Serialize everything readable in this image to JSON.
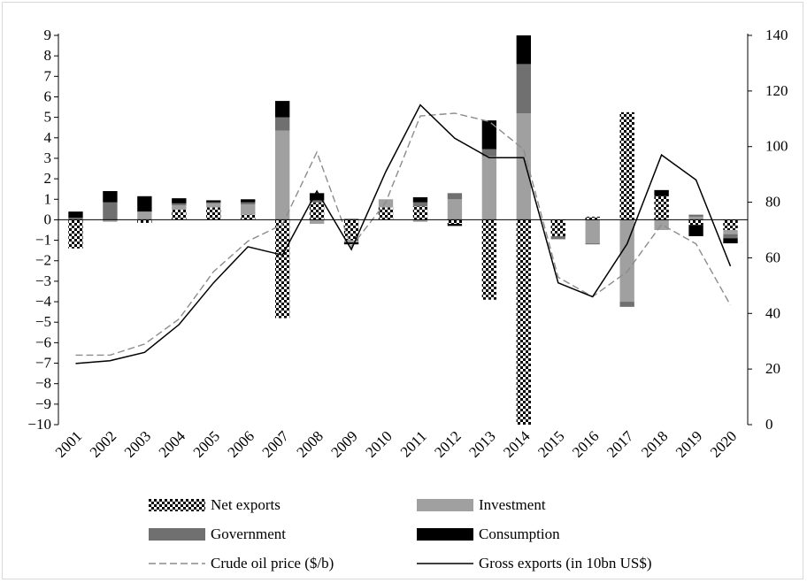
{
  "chart_data": {
    "type": "bar",
    "stacked": true,
    "title": "",
    "categories": [
      "2001",
      "2002",
      "2003",
      "2004",
      "2005",
      "2006",
      "2007",
      "2008",
      "2009",
      "2010",
      "2011",
      "2012",
      "2013",
      "2014",
      "2015",
      "2016",
      "2017",
      "2018",
      "2019",
      "2020"
    ],
    "y_left": {
      "min": -10,
      "max": 9,
      "step": 1,
      "ticks": [
        "−10",
        "−9",
        "−8",
        "−7",
        "−6",
        "−5",
        "−4",
        "−3",
        "−2",
        "−1",
        "0",
        "1",
        "2",
        "3",
        "4",
        "5",
        "6",
        "7",
        "8",
        "9"
      ]
    },
    "y_right": {
      "min": 0,
      "max": 140,
      "step": 20,
      "ticks": [
        "0",
        "20",
        "40",
        "60",
        "80",
        "100",
        "120",
        "140"
      ]
    },
    "bar_series": [
      {
        "name": "Net exports",
        "pattern": "checker",
        "values": [
          -1.4,
          0,
          -0.15,
          0.5,
          0.6,
          0.25,
          -4.8,
          0.85,
          -1.0,
          0.6,
          0.65,
          -0.2,
          -3.9,
          -10.0,
          -0.8,
          0.15,
          5.25,
          1.15,
          -0.25,
          -0.5
        ]
      },
      {
        "name": "Investment",
        "color": "#a0a0a0",
        "values": [
          0,
          -0.1,
          0.4,
          0.2,
          0.2,
          0.5,
          4.35,
          -0.2,
          -0.1,
          0.4,
          -0.1,
          1.0,
          3.1,
          5.2,
          0,
          -1.15,
          -4.0,
          -0.5,
          0.15,
          -0.2
        ]
      },
      {
        "name": "Government",
        "color": "#707070",
        "values": [
          0.1,
          0.85,
          0,
          0.1,
          0.05,
          0.1,
          0.65,
          0.1,
          0.05,
          0,
          0.2,
          0.3,
          0.35,
          2.4,
          -0.15,
          -0.05,
          -0.25,
          0,
          0.1,
          -0.2
        ]
      },
      {
        "name": "Consumption",
        "color": "#000000",
        "values": [
          0.3,
          0.55,
          0.75,
          0.25,
          0.1,
          0.15,
          0.8,
          0.35,
          -0.1,
          0,
          0.25,
          -0.1,
          1.4,
          1.4,
          0,
          0,
          0,
          0.3,
          -0.55,
          -0.25
        ]
      }
    ],
    "line_series": [
      {
        "name": "Crude oil price ($/b)",
        "style": "dashed",
        "color": "#8c8c8c",
        "axis": "right",
        "values": [
          25,
          25,
          29,
          38,
          55,
          66,
          72,
          98,
          64,
          80,
          111,
          112,
          109,
          99,
          53,
          46,
          55,
          72,
          65,
          43
        ]
      },
      {
        "name": "Gross exports (in 10bn US$)",
        "style": "solid",
        "color": "#000000",
        "axis": "right",
        "values": [
          22,
          23,
          26,
          36,
          51,
          64,
          61,
          84,
          63,
          91,
          115,
          103,
          96,
          96,
          51,
          46,
          65,
          97,
          88,
          57
        ]
      }
    ],
    "legend_position": "bottom",
    "grid": false
  }
}
